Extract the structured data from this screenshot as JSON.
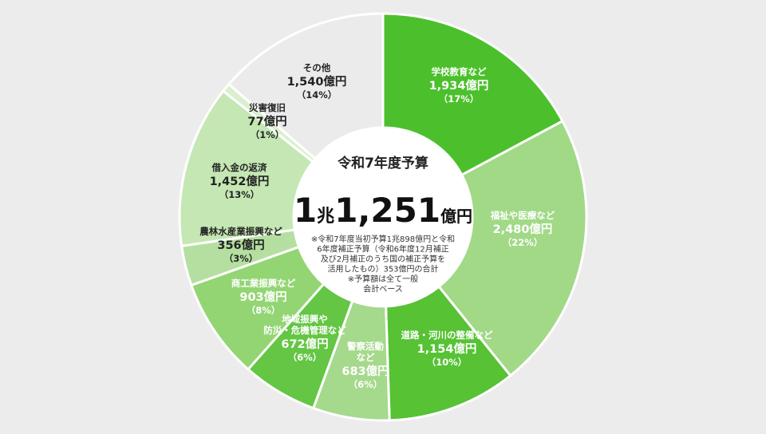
{
  "colors": {
    "background": "#ececec",
    "center": "#ffffff"
  },
  "chart_data": {
    "type": "pie",
    "variant": "donut",
    "center": {
      "title": "令和7年度予算",
      "total_big": "1",
      "total_unit1": "兆",
      "total_num": "1,251",
      "total_unit2": "億円",
      "notes": [
        "※令和7年度当初予算1兆898億円と令和",
        "6年度補正予算（令和6年度12月補正",
        "及び2月補正のうち国の補正予算を",
        "活用したもの）353億円の合計",
        "※予算額は全て一般",
        "会計ベース"
      ]
    },
    "unit": "億円",
    "slices": [
      {
        "label": [
          "学校教育など"
        ],
        "value": 1934,
        "value_text": "1,934億円",
        "percent_text": "（17%）",
        "color": "#4cc02c",
        "text_color": "#ffffff"
      },
      {
        "label": [
          "福祉や医療など"
        ],
        "value": 2480,
        "value_text": "2,480億円",
        "percent_text": "（22%）",
        "color": "#a1d987",
        "text_color": "#ffffff"
      },
      {
        "label": [
          "道路・河川の整備など"
        ],
        "value": 1154,
        "value_text": "1,154億円",
        "percent_text": "（10%）",
        "color": "#56c234",
        "text_color": "#ffffff"
      },
      {
        "label": [
          "警察活動",
          "など"
        ],
        "value": 683,
        "value_text": "683億円",
        "percent_text": "（6%）",
        "color": "#a5d98c",
        "text_color": "#ffffff"
      },
      {
        "label": [
          "地域振興や",
          "防災・危機管理など"
        ],
        "value": 672,
        "value_text": "672億円",
        "percent_text": "（6%）",
        "color": "#64c644",
        "text_color": "#ffffff"
      },
      {
        "label": [
          "商工業振興など"
        ],
        "value": 903,
        "value_text": "903億円",
        "percent_text": "（8%）",
        "color": "#93d573",
        "text_color": "#ffffff"
      },
      {
        "label": [
          "農林水産業振興など"
        ],
        "value": 356,
        "value_text": "356億円",
        "percent_text": "（3%）",
        "color": "#b5dfa0",
        "text_color": "#222222"
      },
      {
        "label": [
          "借入金の返済"
        ],
        "value": 1452,
        "value_text": "1,452億円",
        "percent_text": "（13%）",
        "color": "#c4e7b3",
        "text_color": "#222222"
      },
      {
        "label": [
          "災害復旧"
        ],
        "value": 77,
        "value_text": "77億円",
        "percent_text": "（1%）",
        "color": "#daefce",
        "text_color": "#222222"
      },
      {
        "label": [
          "その他"
        ],
        "value": 1540,
        "value_text": "1,540億円",
        "percent_text": "（14%）",
        "color": "#ebebeb",
        "text_color": "#222222"
      }
    ]
  }
}
